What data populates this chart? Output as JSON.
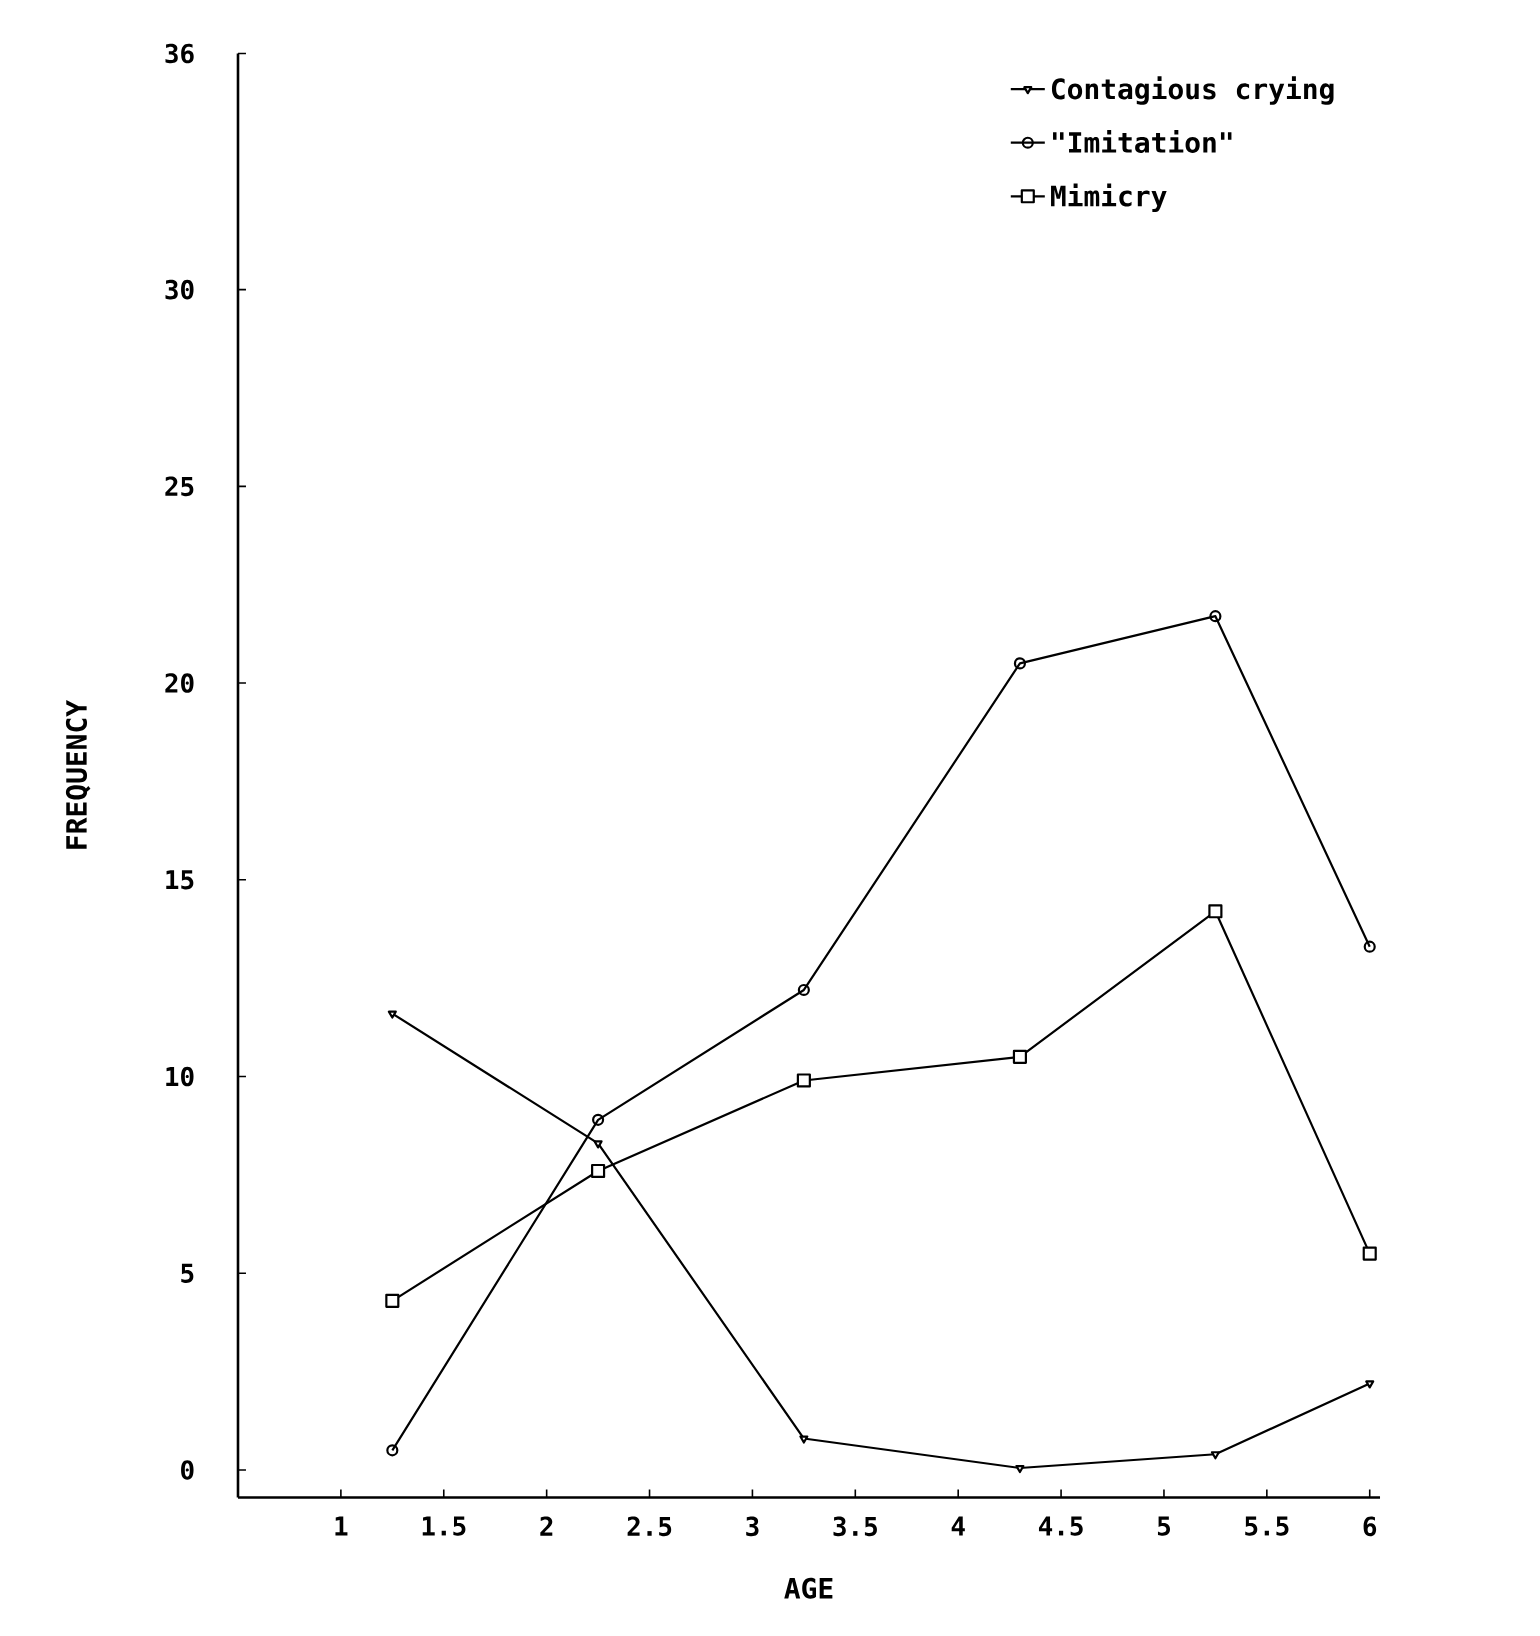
{
  "chart_data": {
    "type": "line",
    "xlabel": "AGE",
    "ylabel": "FREQUENCY",
    "xlim": [
      0.5,
      6.05
    ],
    "ylim": [
      -0.7,
      36
    ],
    "xticks": [
      1,
      1.5,
      2,
      2.5,
      3,
      3.5,
      4,
      4.5,
      5,
      5.5,
      6
    ],
    "yticks": [
      0,
      5,
      10,
      15,
      20,
      25,
      30,
      36
    ],
    "x": [
      1.25,
      2.25,
      3.25,
      4.3,
      5.25,
      6
    ],
    "legend": "top right",
    "grid": false,
    "line_style": "solid",
    "series": [
      {
        "name": "Contagious crying",
        "color": "#000000",
        "marker": "triangle-down",
        "values": [
          11.6,
          8.3,
          0.8,
          0.05,
          0.4,
          2.2
        ]
      },
      {
        "name": "\"Imitation\"",
        "color": "#000000",
        "marker": "circle",
        "values": [
          0.5,
          8.9,
          12.2,
          20.5,
          21.7,
          13.3
        ]
      },
      {
        "name": "Mimicry",
        "color": "#000000",
        "marker": "square",
        "values": [
          4.3,
          7.6,
          9.9,
          10.5,
          14.2,
          5.5
        ]
      }
    ]
  }
}
